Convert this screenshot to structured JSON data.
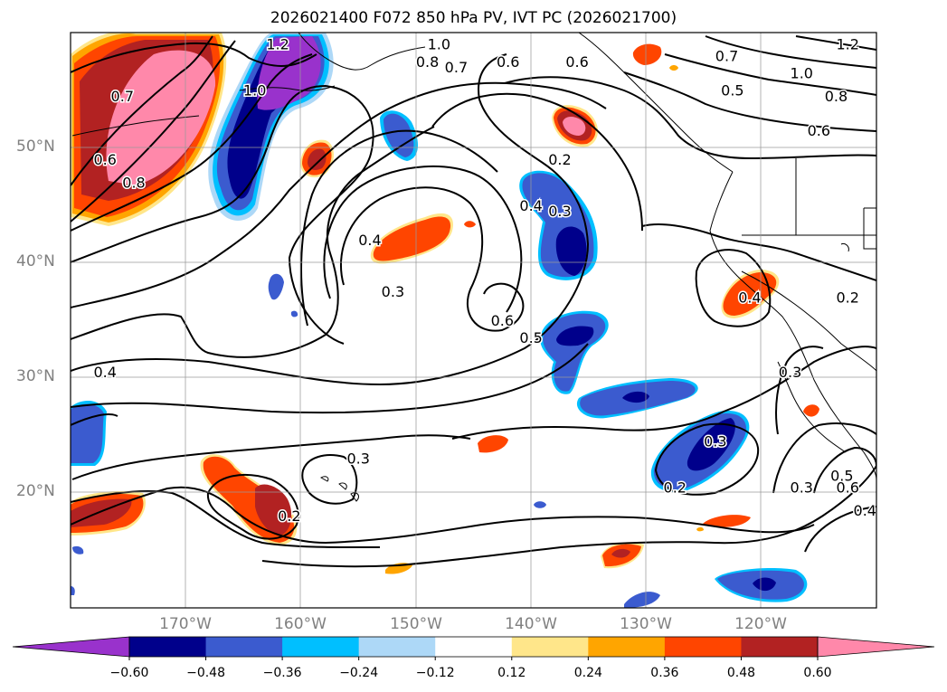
{
  "title": "2026021400 F072 850 hPa PV, IVT PC (2026021700)",
  "latitude_labels": [
    "50°N",
    "40°N",
    "30°N",
    "20°N"
  ],
  "longitude_labels": [
    "170°W",
    "160°W",
    "150°W",
    "140°W",
    "130°W",
    "120°W"
  ],
  "contour_labels": [
    "1.2",
    "1.0",
    "0.8",
    "0.7",
    "0.6",
    "0.5",
    "0.4",
    "0.3",
    "0.2"
  ],
  "colorbar": {
    "ticks": [
      "−0.60",
      "−0.48",
      "−0.36",
      "−0.24",
      "−0.12",
      "0.12",
      "0.24",
      "0.36",
      "0.48",
      "0.60"
    ],
    "colors": [
      "#9932cc",
      "#00008b",
      "#3b5bcf",
      "#00bfff",
      "#add8f7",
      "#ffffff",
      "#ffe68a",
      "#ffa500",
      "#ff4500",
      "#b22222",
      "#ff88aa"
    ]
  },
  "chart_data": {
    "type": "heatmap",
    "title": "2026021400 F072 850 hPa PV, IVT PC (2026021700)",
    "x_axis_ticks": [
      "170°W",
      "160°W",
      "150°W",
      "140°W",
      "130°W",
      "120°W"
    ],
    "y_axis_ticks": [
      "50°N",
      "40°N",
      "30°N",
      "20°N"
    ],
    "lon_range": [
      -180,
      -110
    ],
    "lat_range": [
      10,
      60
    ],
    "grid": true,
    "colorbar_levels": [
      -0.6,
      -0.48,
      -0.36,
      -0.24,
      -0.12,
      0.12,
      0.24,
      0.36,
      0.48,
      0.6
    ],
    "colorbar_extend": "both",
    "contours": [
      {
        "label": "1.2",
        "lon": -162,
        "lat": 59
      },
      {
        "label": "1.0",
        "lon": -148,
        "lat": 59
      },
      {
        "label": "0.8",
        "lon": -149,
        "lat": 57.5
      },
      {
        "label": "0.7",
        "lon": -146.5,
        "lat": 57
      },
      {
        "label": "0.6",
        "lon": -142,
        "lat": 57.5
      },
      {
        "label": "0.7",
        "lon": -175.5,
        "lat": 54.5
      },
      {
        "label": "1.0",
        "lon": -164,
        "lat": 55
      },
      {
        "label": "0.6",
        "lon": -177,
        "lat": 49
      },
      {
        "label": "0.8",
        "lon": -174.5,
        "lat": 47
      },
      {
        "label": "0.4",
        "lon": -154,
        "lat": 42
      },
      {
        "label": "0.3",
        "lon": -152,
        "lat": 37.5
      },
      {
        "label": "0.4",
        "lon": -140,
        "lat": 45
      },
      {
        "label": "0.3",
        "lon": -137.5,
        "lat": 44.5
      },
      {
        "label": "0.2",
        "lon": -137.5,
        "lat": 49
      },
      {
        "label": "0.6",
        "lon": -136,
        "lat": 57.5
      },
      {
        "label": "0.7",
        "lon": -123,
        "lat": 58
      },
      {
        "label": "1.2",
        "lon": -112.5,
        "lat": 59
      },
      {
        "label": "1.0",
        "lon": -116.5,
        "lat": 56.5
      },
      {
        "label": "0.5",
        "lon": -122.5,
        "lat": 55
      },
      {
        "label": "0.8",
        "lon": -113.5,
        "lat": 54.5
      },
      {
        "label": "0.6",
        "lon": -115,
        "lat": 51.5
      },
      {
        "label": "0.6",
        "lon": -142.5,
        "lat": 35
      },
      {
        "label": "0.5",
        "lon": -140,
        "lat": 33.5
      },
      {
        "label": "0.4",
        "lon": -177,
        "lat": 30.5
      },
      {
        "label": "0.3",
        "lon": -155,
        "lat": 23
      },
      {
        "label": "0.2",
        "lon": -161,
        "lat": 18
      },
      {
        "label": "0.3",
        "lon": -124,
        "lat": 24.5
      },
      {
        "label": "0.2",
        "lon": -127.5,
        "lat": 20.5
      },
      {
        "label": "0.4",
        "lon": -121,
        "lat": 37
      },
      {
        "label": "0.2",
        "lon": -112.5,
        "lat": 37
      },
      {
        "label": "0.3",
        "lon": -117.5,
        "lat": 30.5
      },
      {
        "label": "0.3",
        "lon": -116.5,
        "lat": 20.5
      },
      {
        "label": "0.5",
        "lon": -113,
        "lat": 21.5
      },
      {
        "label": "0.6",
        "lon": -112.5,
        "lat": 20.5
      },
      {
        "label": "0.4",
        "lon": -111,
        "lat": 18.5
      }
    ]
  }
}
